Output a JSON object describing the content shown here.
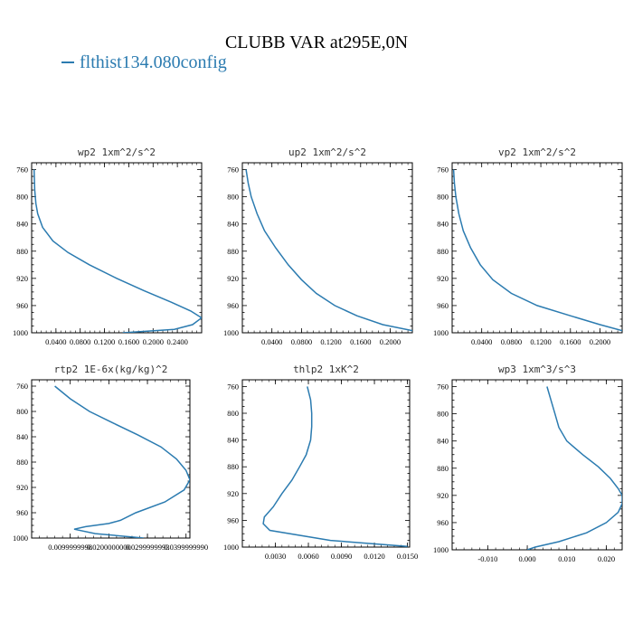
{
  "title": "CLUBB VAR at295E,0N",
  "legend": {
    "label": "flthist134.080config",
    "color": "#2b7bb0"
  },
  "chart_data": [
    {
      "type": "line",
      "title": "wp2   1xm^2/s^2",
      "xlim": [
        0,
        0.28
      ],
      "ylim": [
        1000,
        750
      ],
      "xticks": [
        0.04,
        0.08,
        0.12,
        0.16,
        0.2,
        0.24
      ],
      "xtick_labels": [
        "0.0400",
        "0.0800",
        "0.1200",
        "0.1600",
        "0.2000",
        "0.2400"
      ],
      "yticks": [
        760,
        800,
        840,
        880,
        920,
        960,
        1000
      ],
      "series": [
        {
          "color": "#2b7bb0",
          "x": [
            0.004,
            0.005,
            0.007,
            0.01,
            0.018,
            0.035,
            0.06,
            0.095,
            0.14,
            0.185,
            0.23,
            0.262,
            0.28,
            0.265,
            0.235,
            0.15
          ],
          "y": [
            760,
            790,
            810,
            825,
            845,
            865,
            882,
            900,
            920,
            938,
            955,
            968,
            978,
            988,
            995,
            1000
          ]
        }
      ]
    },
    {
      "type": "line",
      "title": "up2   1xm^2/s^2",
      "xlim": [
        0,
        0.23
      ],
      "ylim": [
        1000,
        750
      ],
      "xticks": [
        0.04,
        0.08,
        0.12,
        0.16,
        0.2
      ],
      "xtick_labels": [
        "0.0400",
        "0.0800",
        "0.1200",
        "0.1600",
        "0.2000"
      ],
      "yticks": [
        760,
        800,
        840,
        880,
        920,
        960,
        1000
      ],
      "series": [
        {
          "color": "#2b7bb0",
          "x": [
            0.005,
            0.008,
            0.012,
            0.02,
            0.03,
            0.045,
            0.062,
            0.08,
            0.1,
            0.125,
            0.155,
            0.19,
            0.23
          ],
          "y": [
            760,
            780,
            800,
            825,
            850,
            875,
            900,
            922,
            942,
            960,
            975,
            988,
            997
          ]
        }
      ]
    },
    {
      "type": "line",
      "title": "vp2   1xm^2/s^2",
      "xlim": [
        0,
        0.23
      ],
      "ylim": [
        1000,
        750
      ],
      "xticks": [
        0.04,
        0.08,
        0.12,
        0.16,
        0.2
      ],
      "xtick_labels": [
        "0.0400",
        "0.0800",
        "0.1200",
        "0.1600",
        "0.2000"
      ],
      "yticks": [
        760,
        800,
        840,
        880,
        920,
        960,
        1000
      ],
      "series": [
        {
          "color": "#2b7bb0",
          "x": [
            0.002,
            0.003,
            0.005,
            0.009,
            0.015,
            0.025,
            0.038,
            0.055,
            0.08,
            0.115,
            0.16,
            0.2,
            0.23
          ],
          "y": [
            760,
            780,
            800,
            825,
            850,
            875,
            900,
            922,
            942,
            960,
            975,
            988,
            997
          ]
        }
      ]
    },
    {
      "type": "line",
      "title": "rtp2   1E-6x(kg/kg)^2",
      "xlim": [
        0,
        0.041
      ],
      "ylim": [
        1000,
        750
      ],
      "xticks": [
        0.01,
        0.02,
        0.03,
        0.04
      ],
      "xtick_labels": [
        "0.0099999998",
        "0.0200000000",
        "0.0299999993",
        "0.0399999990"
      ],
      "yticks": [
        760,
        800,
        840,
        880,
        920,
        960,
        1000
      ],
      "series": [
        {
          "color": "#2b7bb0",
          "x": [
            0.006,
            0.01,
            0.015,
            0.021,
            0.0275,
            0.0335,
            0.0375,
            0.04,
            0.041,
            0.0395,
            0.0345,
            0.027,
            0.023,
            0.02,
            0.014,
            0.011,
            0.0165,
            0.029
          ],
          "y": [
            760,
            780,
            800,
            818,
            837,
            856,
            875,
            893,
            908,
            924,
            943,
            960,
            972,
            977,
            982,
            986,
            993,
            1000
          ]
        }
      ]
    },
    {
      "type": "line",
      "title": "thlp2   1xK^2",
      "xlim": [
        0,
        0.0152
      ],
      "ylim": [
        1000,
        750
      ],
      "xticks": [
        0.003,
        0.006,
        0.009,
        0.012,
        0.015
      ],
      "xtick_labels": [
        "0.0030",
        "0.0060",
        "0.0090",
        "0.0120",
        "0.0150"
      ],
      "yticks": [
        760,
        800,
        840,
        880,
        920,
        960,
        1000
      ],
      "series": [
        {
          "color": "#2b7bb0",
          "x": [
            0.0059,
            0.0062,
            0.0063,
            0.0063,
            0.0062,
            0.0058,
            0.0052,
            0.0045,
            0.0036,
            0.0028,
            0.002,
            0.0019,
            0.0025,
            0.008,
            0.015
          ],
          "y": [
            760,
            780,
            800,
            820,
            840,
            862,
            880,
            900,
            920,
            940,
            955,
            965,
            975,
            990,
            999
          ]
        }
      ]
    },
    {
      "type": "line",
      "title": "wp3   1xm^3/s^3",
      "xlim": [
        -0.019,
        0.024
      ],
      "ylim": [
        1000,
        750
      ],
      "xticks": [
        -0.01,
        0.0,
        0.01,
        0.02
      ],
      "xtick_labels": [
        "-0.010",
        "0.000",
        "0.010",
        "0.020"
      ],
      "yticks": [
        760,
        800,
        840,
        880,
        920,
        960,
        1000
      ],
      "series": [
        {
          "color": "#2b7bb0",
          "x": [
            0.005,
            0.006,
            0.007,
            0.008,
            0.01,
            0.014,
            0.018,
            0.021,
            0.023,
            0.024,
            0.024,
            0.023,
            0.02,
            0.015,
            0.008,
            0.002,
            0.0
          ],
          "y": [
            760,
            780,
            800,
            820,
            840,
            860,
            878,
            895,
            910,
            920,
            932,
            945,
            960,
            975,
            988,
            996,
            1000
          ]
        }
      ]
    }
  ]
}
